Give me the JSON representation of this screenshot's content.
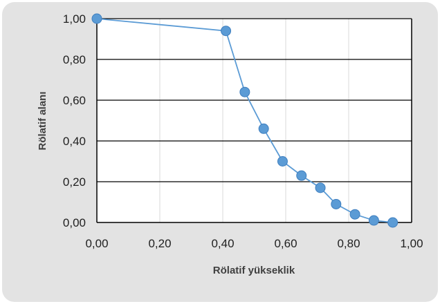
{
  "chart_data": {
    "type": "scatter",
    "title": "",
    "xlabel": "Rölatif yükseklik",
    "ylabel": "Rölatif alanı",
    "xlim": [
      0,
      1
    ],
    "ylim": [
      0,
      1
    ],
    "xticks": [
      "0,00",
      "0,20",
      "0,40",
      "0,60",
      "0,80",
      "1,00"
    ],
    "yticks": [
      "0,00",
      "0,20",
      "0,40",
      "0,60",
      "0,80",
      "1,00"
    ],
    "grid": true,
    "legend": "none",
    "series": [
      {
        "x": [
          0.0,
          0.41,
          0.47,
          0.53,
          0.59,
          0.65,
          0.71,
          0.76,
          0.82,
          0.88,
          0.94
        ],
        "y": [
          1.0,
          0.94,
          0.64,
          0.46,
          0.3,
          0.23,
          0.17,
          0.09,
          0.04,
          0.01,
          0.0
        ]
      }
    ],
    "colors": {
      "line": "#5b9bd5",
      "marker": "#5b9bd5",
      "marker_edge": "#3f7fbf",
      "plot_background": "#ffffff",
      "card_background": "#e3e3e3",
      "gridline_horizontal": "#000000",
      "gridline_vertical": "#d9d9d9"
    }
  }
}
